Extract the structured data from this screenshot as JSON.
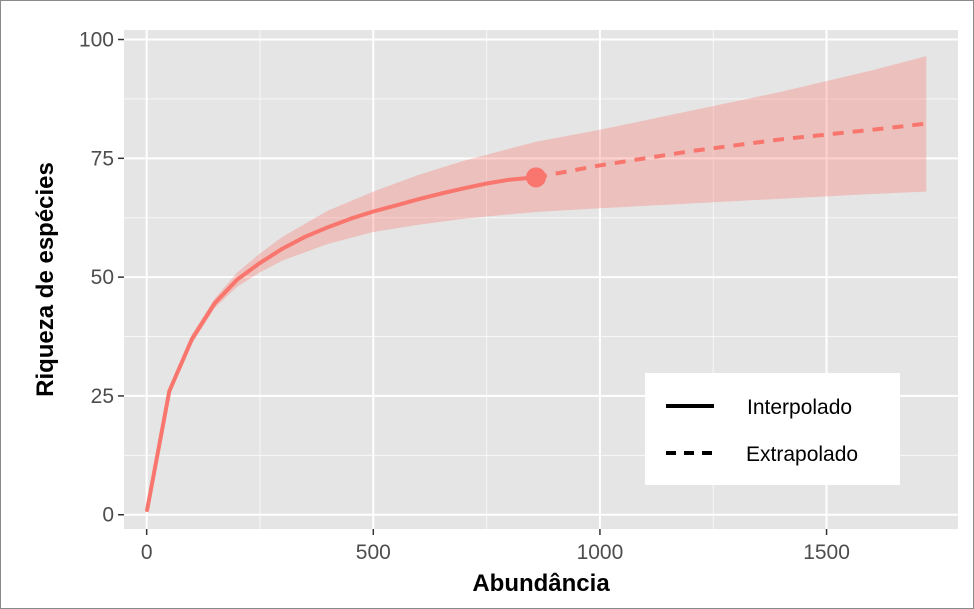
{
  "chart_data": {
    "type": "line",
    "title": "",
    "xlabel": "Abundância",
    "ylabel": "Riqueza de espécies",
    "xlim": [
      -50,
      1790
    ],
    "ylim": [
      -3,
      102
    ],
    "x_ticks": [
      0,
      500,
      1000,
      1500
    ],
    "y_ticks": [
      0,
      25,
      50,
      75,
      100
    ],
    "grid": true,
    "legend_position": "bottom-right",
    "colors": {
      "series": "#f8766d",
      "band": "#f8766d",
      "panel": "#e5e5e5",
      "grid": "#ffffff"
    },
    "legend": [
      {
        "label": "Interpolado",
        "linetype": "solid"
      },
      {
        "label": "Extrapolado",
        "linetype": "dashed"
      }
    ],
    "series": [
      {
        "linetype": "solid",
        "x": [
          1,
          50,
          100,
          150,
          200,
          250,
          300,
          350,
          400,
          450,
          500,
          550,
          600,
          650,
          700,
          750,
          800,
          859
        ],
        "y": [
          1,
          26,
          37,
          44.5,
          49.5,
          53,
          56,
          58.5,
          60.5,
          62.3,
          63.8,
          65.1,
          66.4,
          67.6,
          68.7,
          69.7,
          70.5,
          71
        ]
      },
      {
        "linetype": "dashed",
        "x": [
          859,
          1000,
          1200,
          1400,
          1600,
          1720
        ],
        "y": [
          71,
          73.5,
          76.5,
          79,
          81,
          82.3
        ]
      }
    ],
    "ci_band": {
      "x": [
        1,
        50,
        100,
        150,
        200,
        250,
        300,
        400,
        500,
        600,
        700,
        800,
        859,
        1000,
        1200,
        1400,
        1600,
        1720
      ],
      "lower": [
        1,
        25,
        36,
        43.5,
        48,
        51,
        53.5,
        57,
        59.5,
        61,
        62.3,
        63.2,
        63.7,
        64.5,
        65.5,
        66.5,
        67.5,
        68
      ],
      "upper": [
        1,
        27,
        38,
        45.5,
        51,
        55,
        58.5,
        64,
        68,
        71.5,
        74.5,
        77,
        78.5,
        81,
        85,
        89,
        93.5,
        96.5
      ]
    },
    "highlight_point": {
      "x": 859,
      "y": 71
    }
  }
}
